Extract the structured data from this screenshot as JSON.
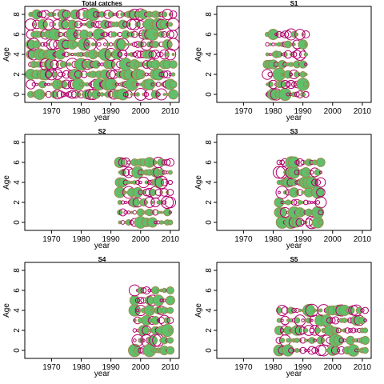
{
  "colors": {
    "positive_fill": "#5fbf6a",
    "positive_stroke": "#9a8a52",
    "negative_stroke": "#b0006a",
    "axis": "#000000"
  },
  "chart_data": [
    {
      "type": "scatter",
      "title": "Total catches",
      "xlabel": "year",
      "ylabel": "Age",
      "xlim": [
        1961,
        2013
      ],
      "ylim": [
        -0.8,
        8.8
      ],
      "xticks": [
        1970,
        1980,
        1990,
        2000,
        2010
      ],
      "yticks": [
        0,
        2,
        4,
        6,
        8
      ],
      "x_range": [
        1963,
        2011
      ],
      "ages": [
        0,
        1,
        2,
        3,
        4,
        5,
        6,
        7,
        8
      ],
      "marker_encoding": "bubble size = residual magnitude; filled green = positive, open purple = negative",
      "seed": 3
    },
    {
      "type": "scatter",
      "title": "S1",
      "xlabel": "year",
      "ylabel": "Age",
      "xlim": [
        1961,
        2013
      ],
      "ylim": [
        -0.8,
        8.8
      ],
      "xticks": [
        1970,
        1980,
        1990,
        2000,
        2010
      ],
      "yticks": [
        0,
        2,
        4,
        6,
        8
      ],
      "x_range": [
        1978,
        1991
      ],
      "ages": [
        0,
        1,
        2,
        3,
        4,
        5,
        6
      ],
      "marker_encoding": "bubble size = residual magnitude; filled green = positive, open purple = negative",
      "seed": 11
    },
    {
      "type": "scatter",
      "title": "S2",
      "xlabel": "year",
      "ylabel": "Age",
      "xlim": [
        1961,
        2013
      ],
      "ylim": [
        -0.8,
        8.8
      ],
      "xticks": [
        1970,
        1980,
        1990,
        2000,
        2010
      ],
      "yticks": [
        0,
        2,
        4,
        6,
        8
      ],
      "x_range": [
        1993,
        2010
      ],
      "ages": [
        0,
        1,
        2,
        3,
        4,
        5,
        6
      ],
      "marker_encoding": "bubble size = residual magnitude; filled green = positive, open purple = negative",
      "seed": 21
    },
    {
      "type": "scatter",
      "title": "S3",
      "xlabel": "year",
      "ylabel": "Age",
      "xlim": [
        1961,
        2013
      ],
      "ylim": [
        -0.8,
        8.8
      ],
      "xticks": [
        1970,
        1980,
        1990,
        2000,
        2010
      ],
      "yticks": [
        0,
        2,
        4,
        6,
        8
      ],
      "x_range": [
        1982,
        1996
      ],
      "ages": [
        0,
        1,
        2,
        3,
        4,
        5,
        6
      ],
      "marker_encoding": "bubble size = residual magnitude; filled green = positive, open purple = negative",
      "seed": 31
    },
    {
      "type": "scatter",
      "title": "S4",
      "xlabel": "year",
      "ylabel": "Age",
      "xlim": [
        1961,
        2013
      ],
      "ylim": [
        -0.8,
        8.8
      ],
      "xticks": [
        1970,
        1980,
        1990,
        2000,
        2010
      ],
      "yticks": [
        0,
        2,
        4,
        6,
        8
      ],
      "x_range": [
        1998,
        2010
      ],
      "ages": [
        0,
        1,
        2,
        3,
        4,
        5,
        6
      ],
      "marker_encoding": "bubble size = residual magnitude; filled green = positive, open purple = negative",
      "seed": 41
    },
    {
      "type": "scatter",
      "title": "S5",
      "xlabel": "year",
      "ylabel": "Age",
      "xlim": [
        1961,
        2013
      ],
      "ylim": [
        -0.8,
        8.8
      ],
      "xticks": [
        1970,
        1980,
        1990,
        2000,
        2010
      ],
      "yticks": [
        0,
        2,
        4,
        6,
        8
      ],
      "x_range": [
        1982,
        2011
      ],
      "ages": [
        0,
        1,
        2,
        3,
        4
      ],
      "marker_encoding": "bubble size = residual magnitude; filled green = positive, open purple = negative",
      "seed": 51
    }
  ]
}
